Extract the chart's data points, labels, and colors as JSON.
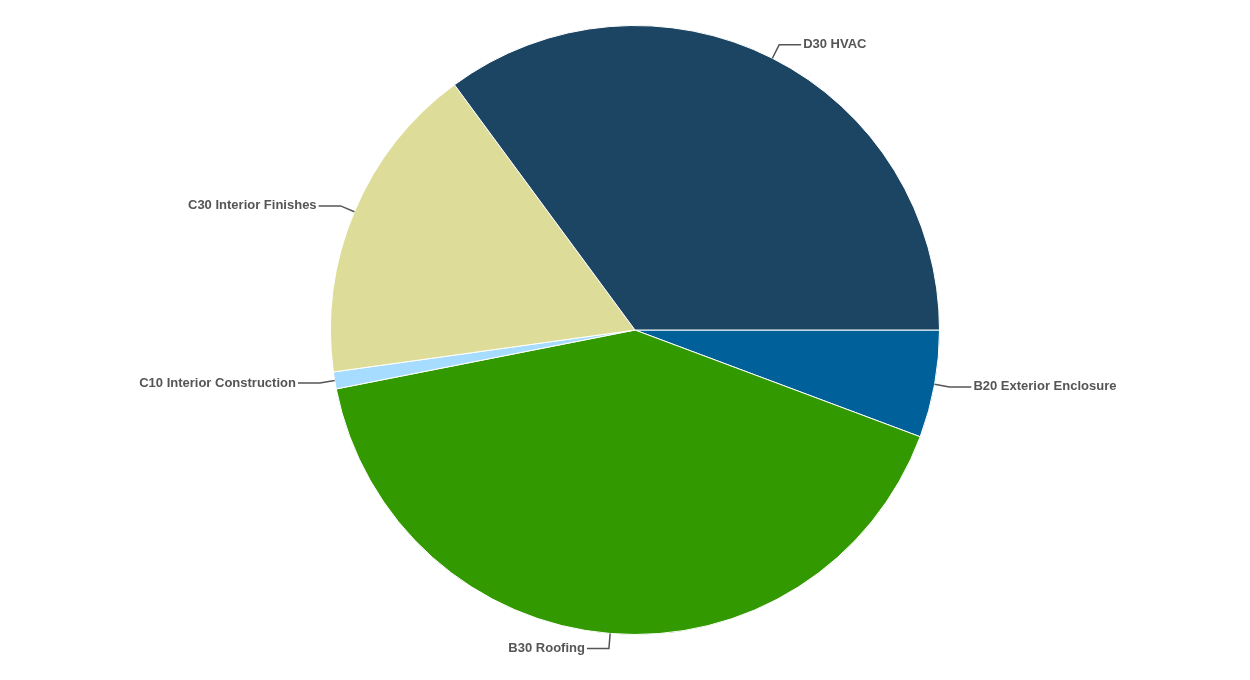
{
  "chart_data": {
    "type": "pie",
    "categories": [
      "B20 Exterior Enclosure",
      "B30 Roofing",
      "C10 Interior Construction",
      "C30 Interior Finishes",
      "D30 HVAC"
    ],
    "values": [
      5.7,
      41.2,
      0.9,
      17.1,
      35.1
    ],
    "colors": [
      "#00609a",
      "#339900",
      "#a6dcff",
      "#dddd99",
      "#1b4562"
    ],
    "legend": false
  }
}
